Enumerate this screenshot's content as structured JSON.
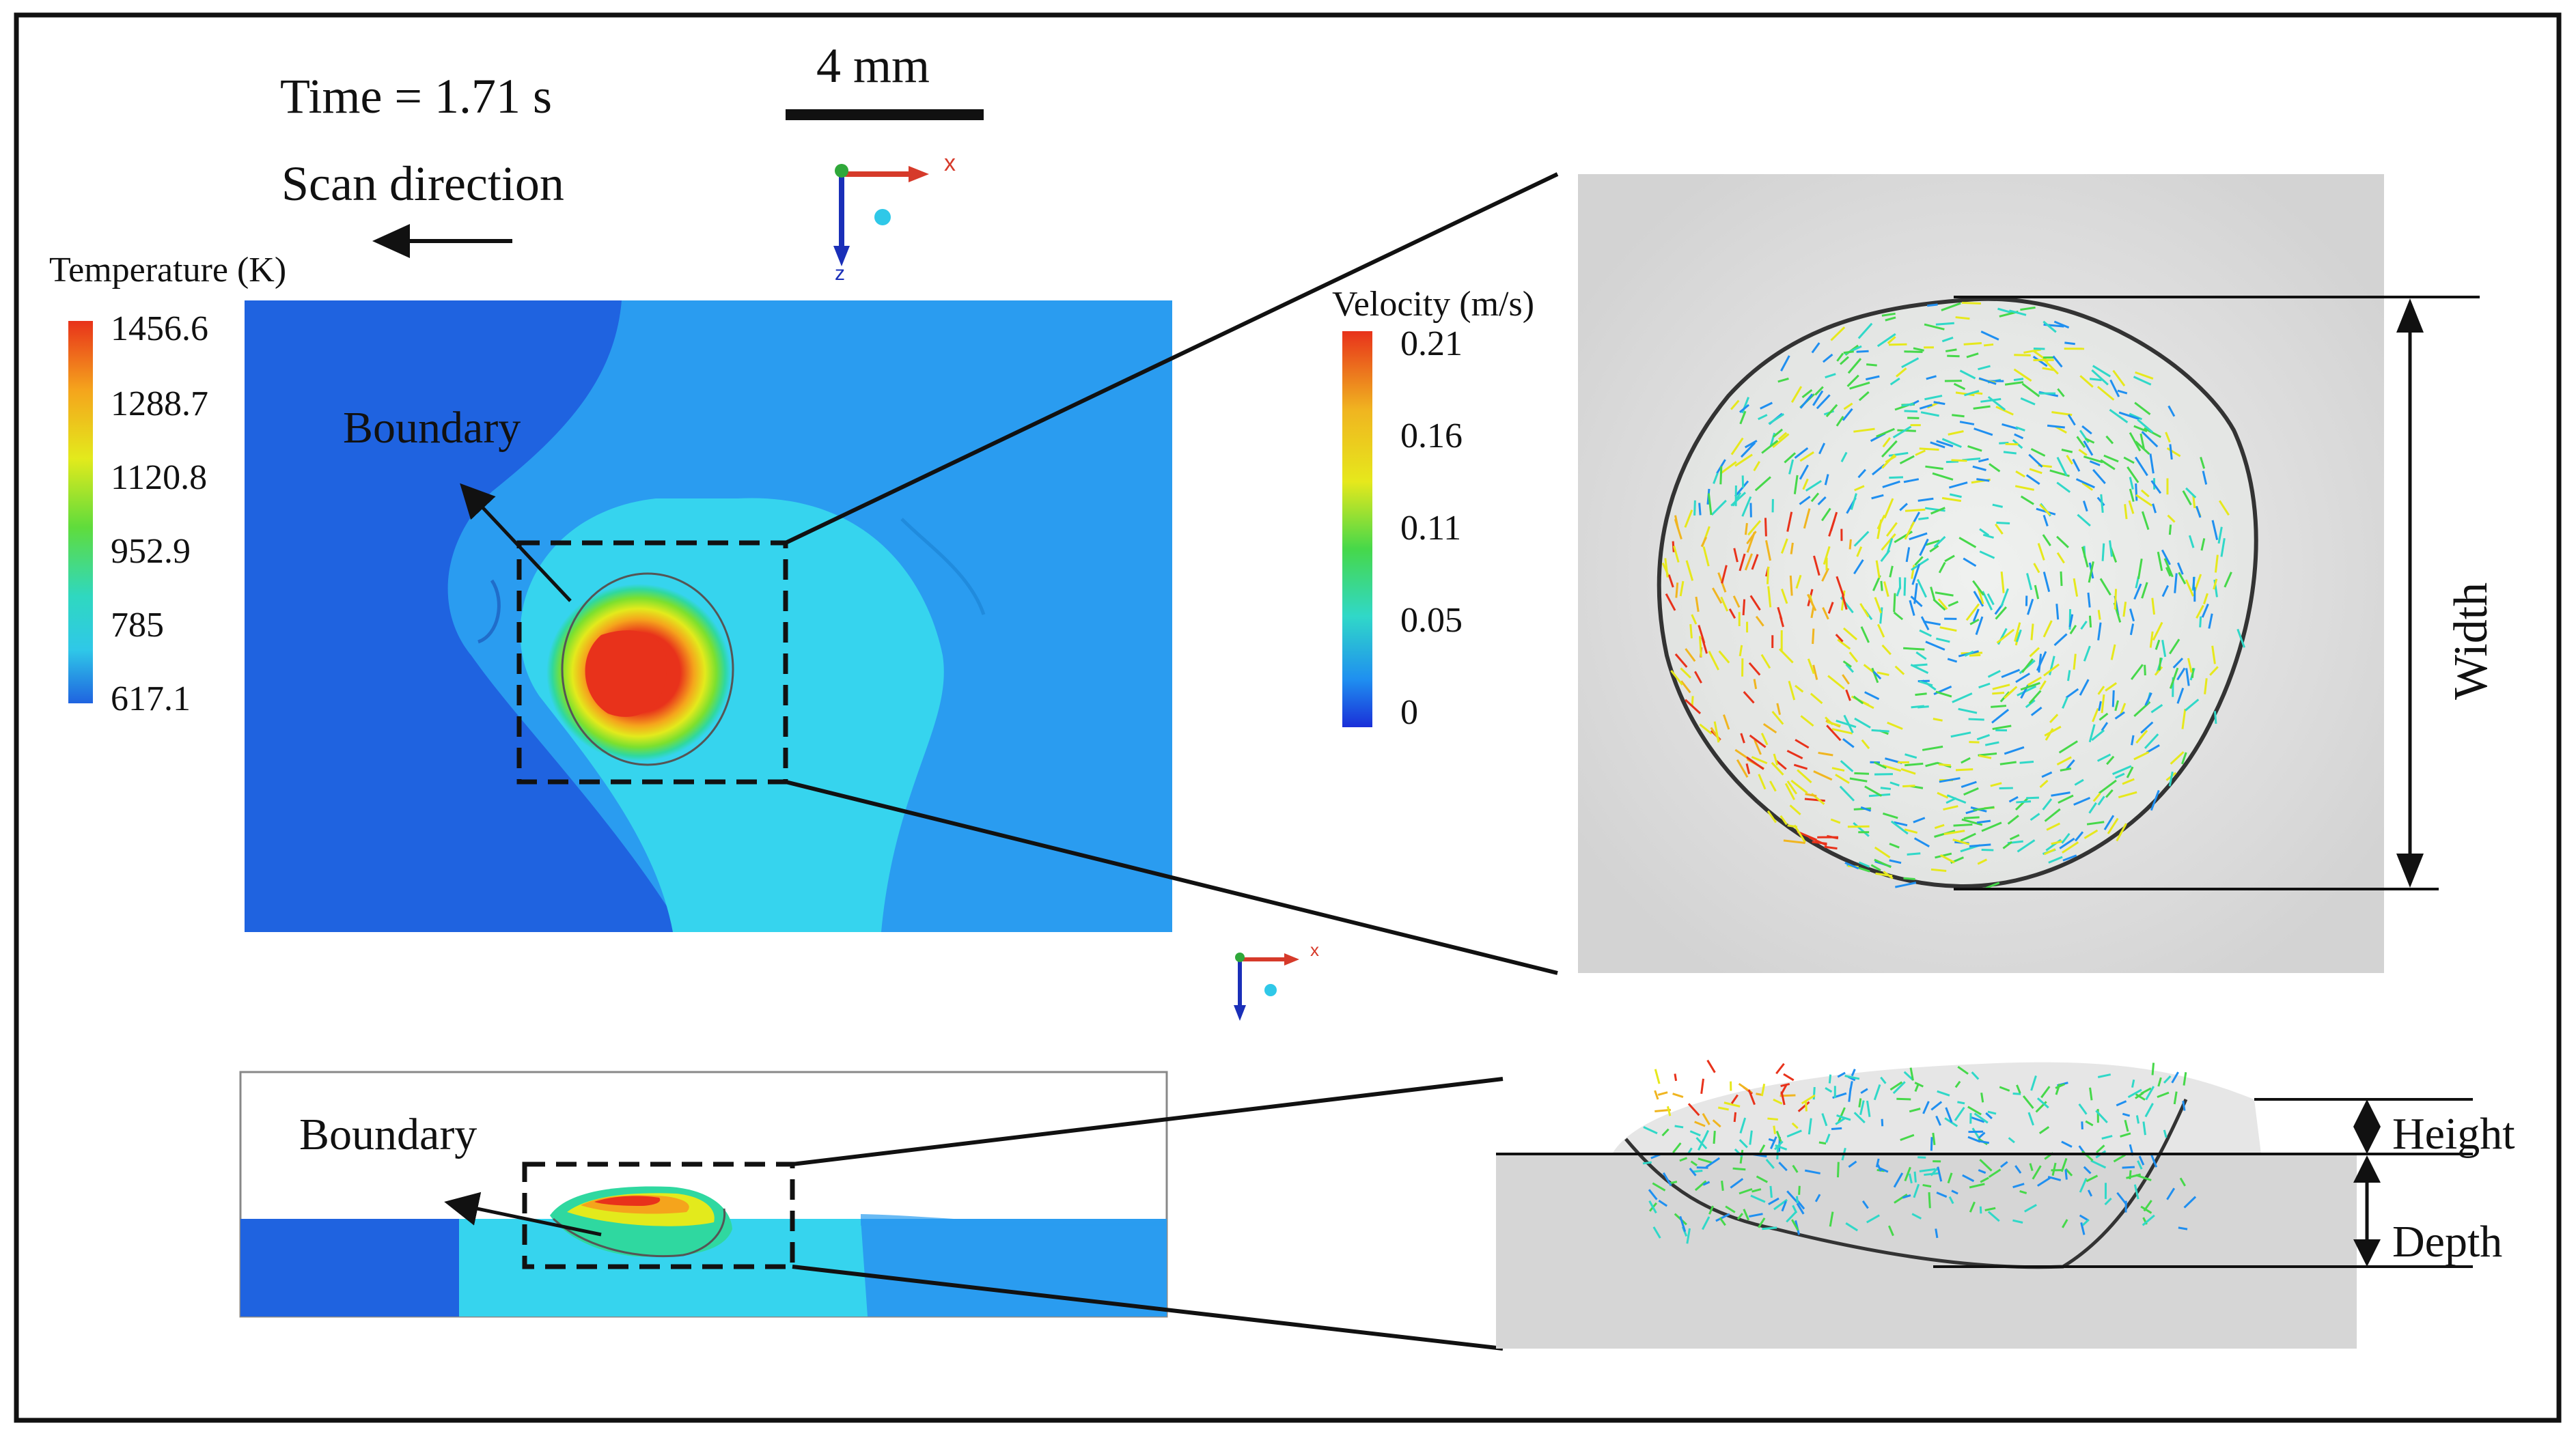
{
  "time_label": "Time = 1.71 s",
  "scan_direction_label": "Scan direction",
  "scale_bar_label": "4 mm",
  "temperature_legend": {
    "title": "Temperature (K)",
    "ticks": [
      "1456.6",
      "1288.7",
      "1120.8",
      "952.9",
      "785",
      "617.1"
    ],
    "colors": [
      "#e8321b",
      "#f5a41c",
      "#e3ea1c",
      "#8ee02a",
      "#2fd88a",
      "#2fc8e8",
      "#1f63e0"
    ]
  },
  "velocity_legend": {
    "title": "Velocity (m/s)",
    "ticks": [
      "0.21",
      "0.16",
      "0.11",
      "0.05",
      "0"
    ],
    "colors": [
      "#e8321b",
      "#f0b520",
      "#e6e81c",
      "#46d84a",
      "#30d8c8",
      "#1f8ff0",
      "#1a2fd8"
    ]
  },
  "top_view": {
    "boundary_label": "Boundary"
  },
  "cross_section": {
    "boundary_label": "Boundary"
  },
  "zoom_top": {
    "dimension_label": "Width"
  },
  "zoom_section": {
    "height_label": "Height",
    "depth_label": "Depth"
  },
  "axis_triad": {
    "x": "x",
    "y": "y",
    "z": "z"
  },
  "colors": {
    "substrate_dark": "#1f63e0",
    "substrate_mid": "#2a9cf0",
    "track": "#36d4ee",
    "hot": "#e8321b",
    "gray_panel": "#d9d9d9"
  }
}
